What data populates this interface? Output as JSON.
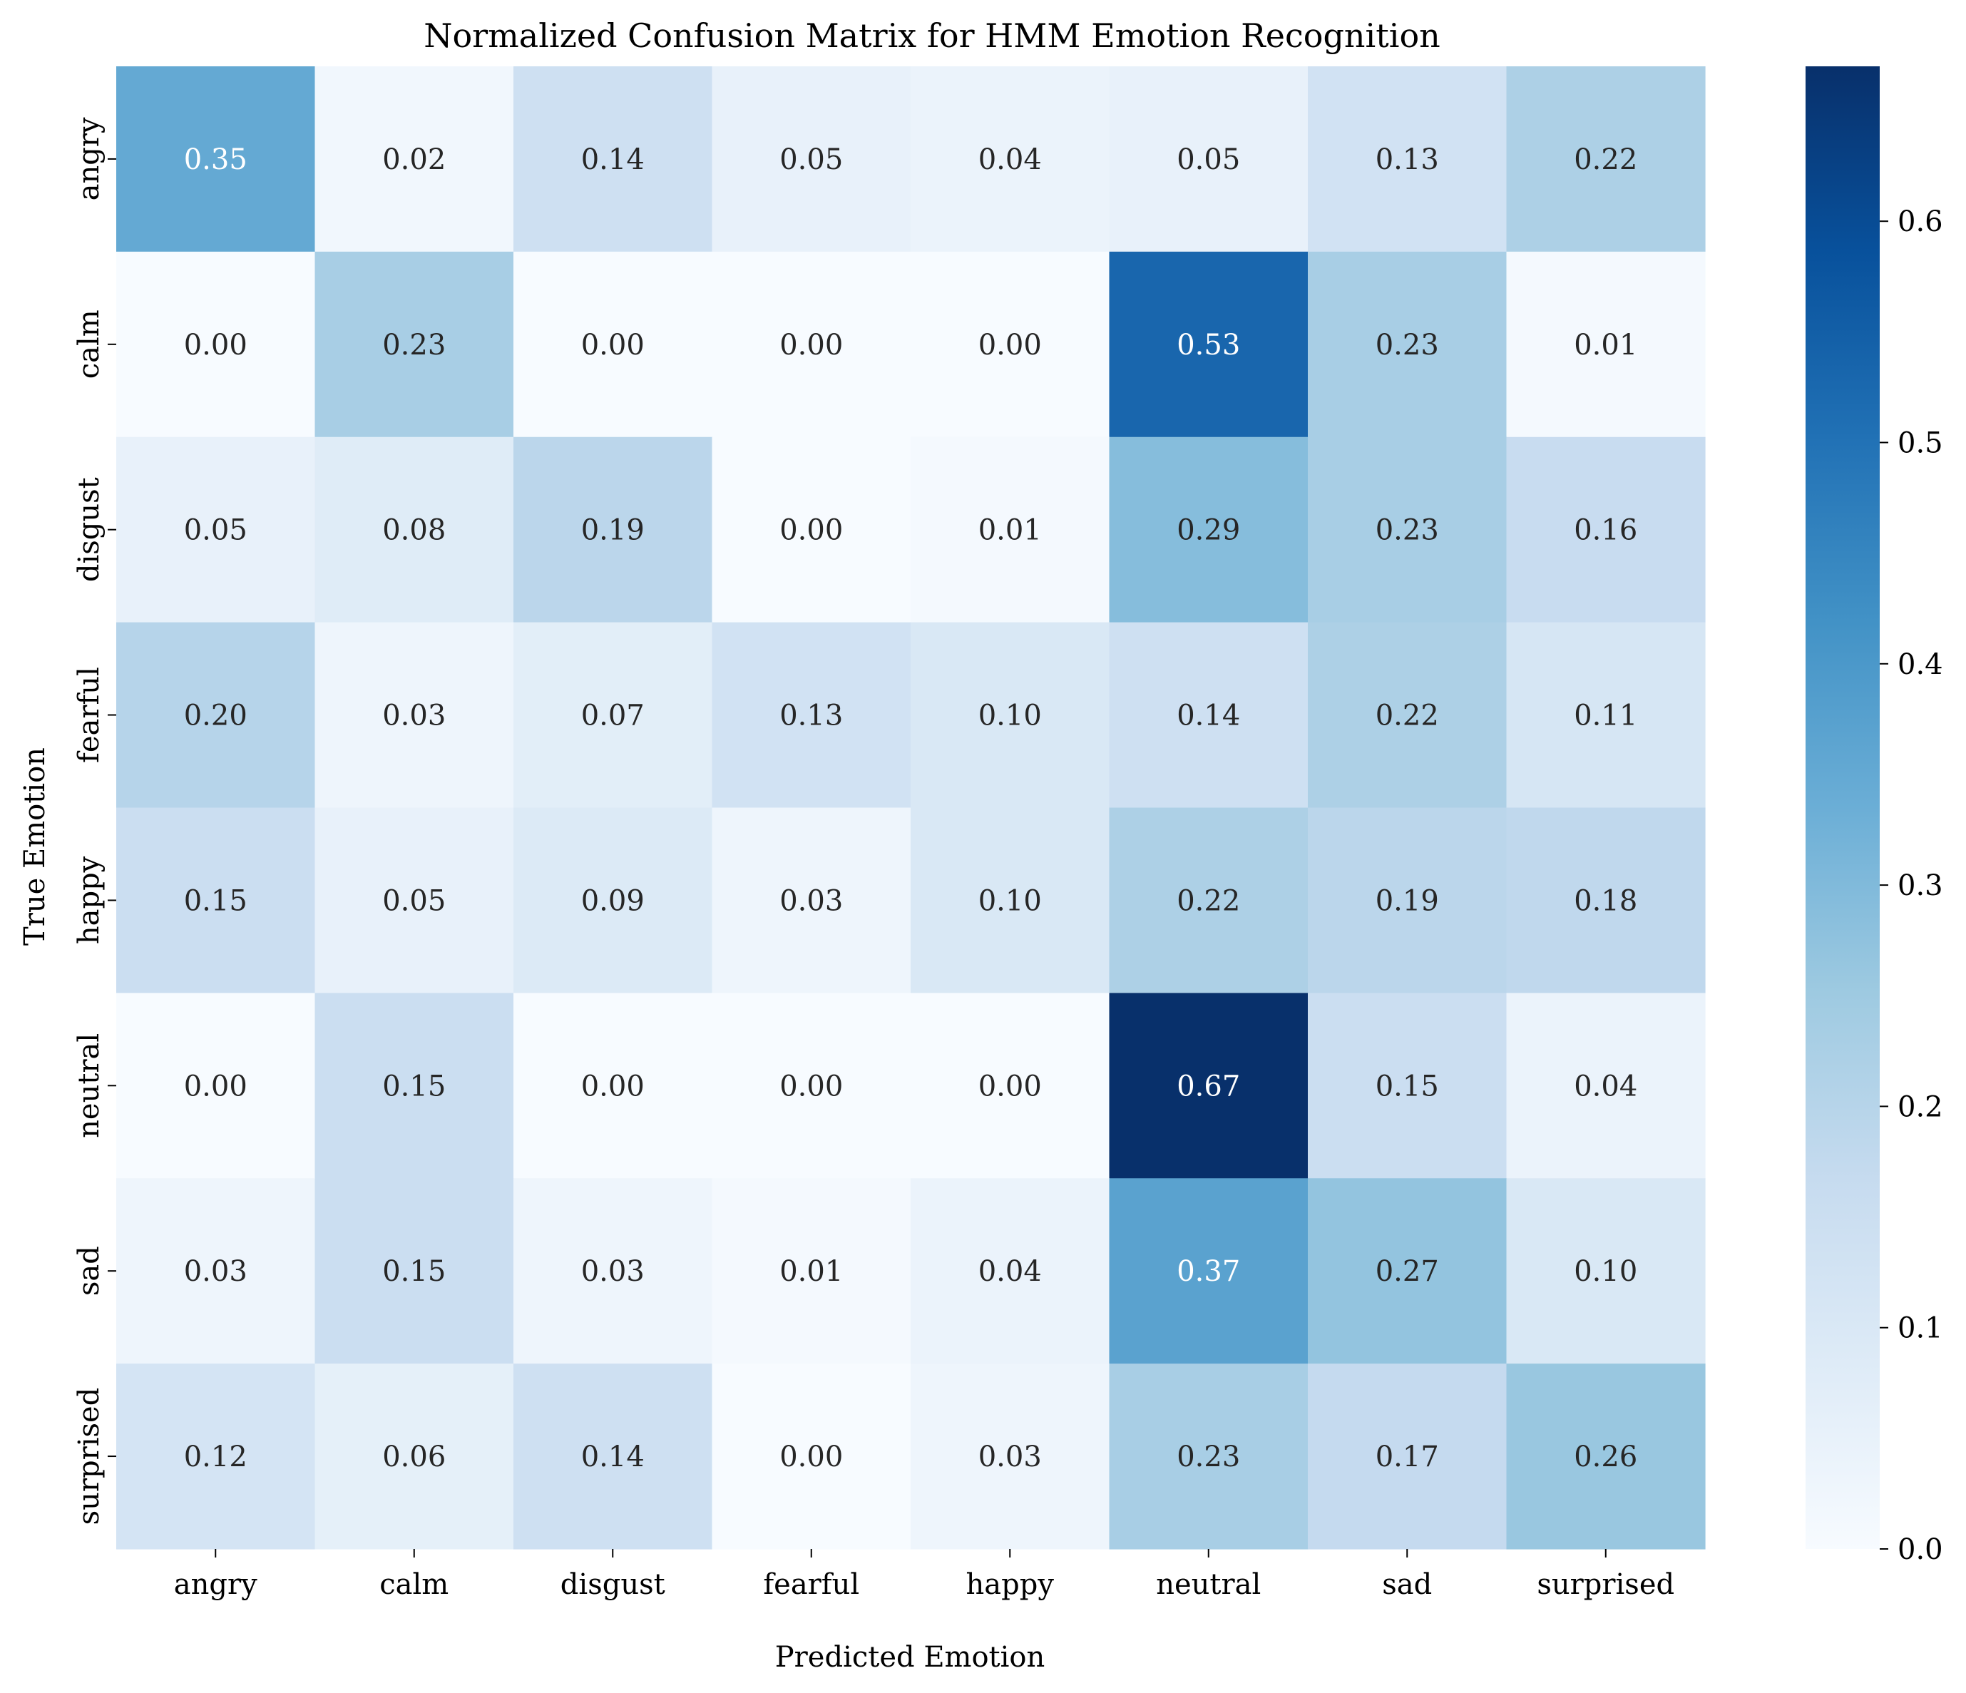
{
  "chart_data": {
    "type": "heatmap",
    "title": "Normalized Confusion Matrix for HMM Emotion Recognition",
    "xlabel": "Predicted Emotion",
    "ylabel": "True Emotion",
    "x_categories": [
      "angry",
      "calm",
      "disgust",
      "fearful",
      "happy",
      "neutral",
      "sad",
      "surprised"
    ],
    "y_categories": [
      "angry",
      "calm",
      "disgust",
      "fearful",
      "happy",
      "neutral",
      "sad",
      "surprised"
    ],
    "values": [
      [
        0.35,
        0.02,
        0.14,
        0.05,
        0.04,
        0.05,
        0.13,
        0.22
      ],
      [
        0.0,
        0.23,
        0.0,
        0.0,
        0.0,
        0.53,
        0.23,
        0.01
      ],
      [
        0.05,
        0.08,
        0.19,
        0.0,
        0.01,
        0.29,
        0.23,
        0.16
      ],
      [
        0.2,
        0.03,
        0.07,
        0.13,
        0.1,
        0.14,
        0.22,
        0.11
      ],
      [
        0.15,
        0.05,
        0.09,
        0.03,
        0.1,
        0.22,
        0.19,
        0.18
      ],
      [
        0.0,
        0.15,
        0.0,
        0.0,
        0.0,
        0.67,
        0.15,
        0.04
      ],
      [
        0.03,
        0.15,
        0.03,
        0.01,
        0.04,
        0.37,
        0.27,
        0.1
      ],
      [
        0.12,
        0.06,
        0.14,
        0.0,
        0.03,
        0.23,
        0.17,
        0.26
      ]
    ],
    "colormap": "Blues",
    "color_range": [
      0.0,
      0.67
    ],
    "colorbar_ticks": [
      "0.0",
      "0.1",
      "0.2",
      "0.3",
      "0.4",
      "0.5",
      "0.6"
    ],
    "grid": false,
    "annotations": "cell values, two decimals"
  }
}
